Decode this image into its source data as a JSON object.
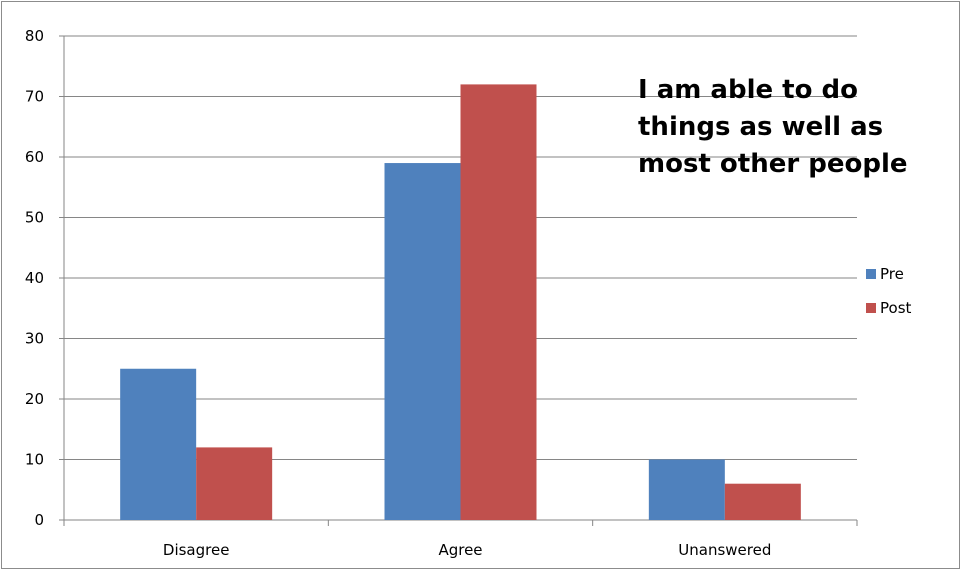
{
  "chart_data": {
    "type": "bar",
    "title_lines": [
      "I am able to do",
      "things as well as",
      "most other people"
    ],
    "categories": [
      "Disagree",
      "Agree",
      "Unanswered"
    ],
    "series": [
      {
        "name": "Pre",
        "color": "#4f81bd",
        "values": [
          25,
          59,
          10
        ]
      },
      {
        "name": "Post",
        "color": "#c0504d",
        "values": [
          12,
          72,
          6
        ]
      }
    ],
    "ylim": [
      0,
      80
    ],
    "yticks": [
      0,
      10,
      20,
      30,
      40,
      50,
      60,
      70,
      80
    ],
    "grid": true,
    "legend_position": "right"
  }
}
